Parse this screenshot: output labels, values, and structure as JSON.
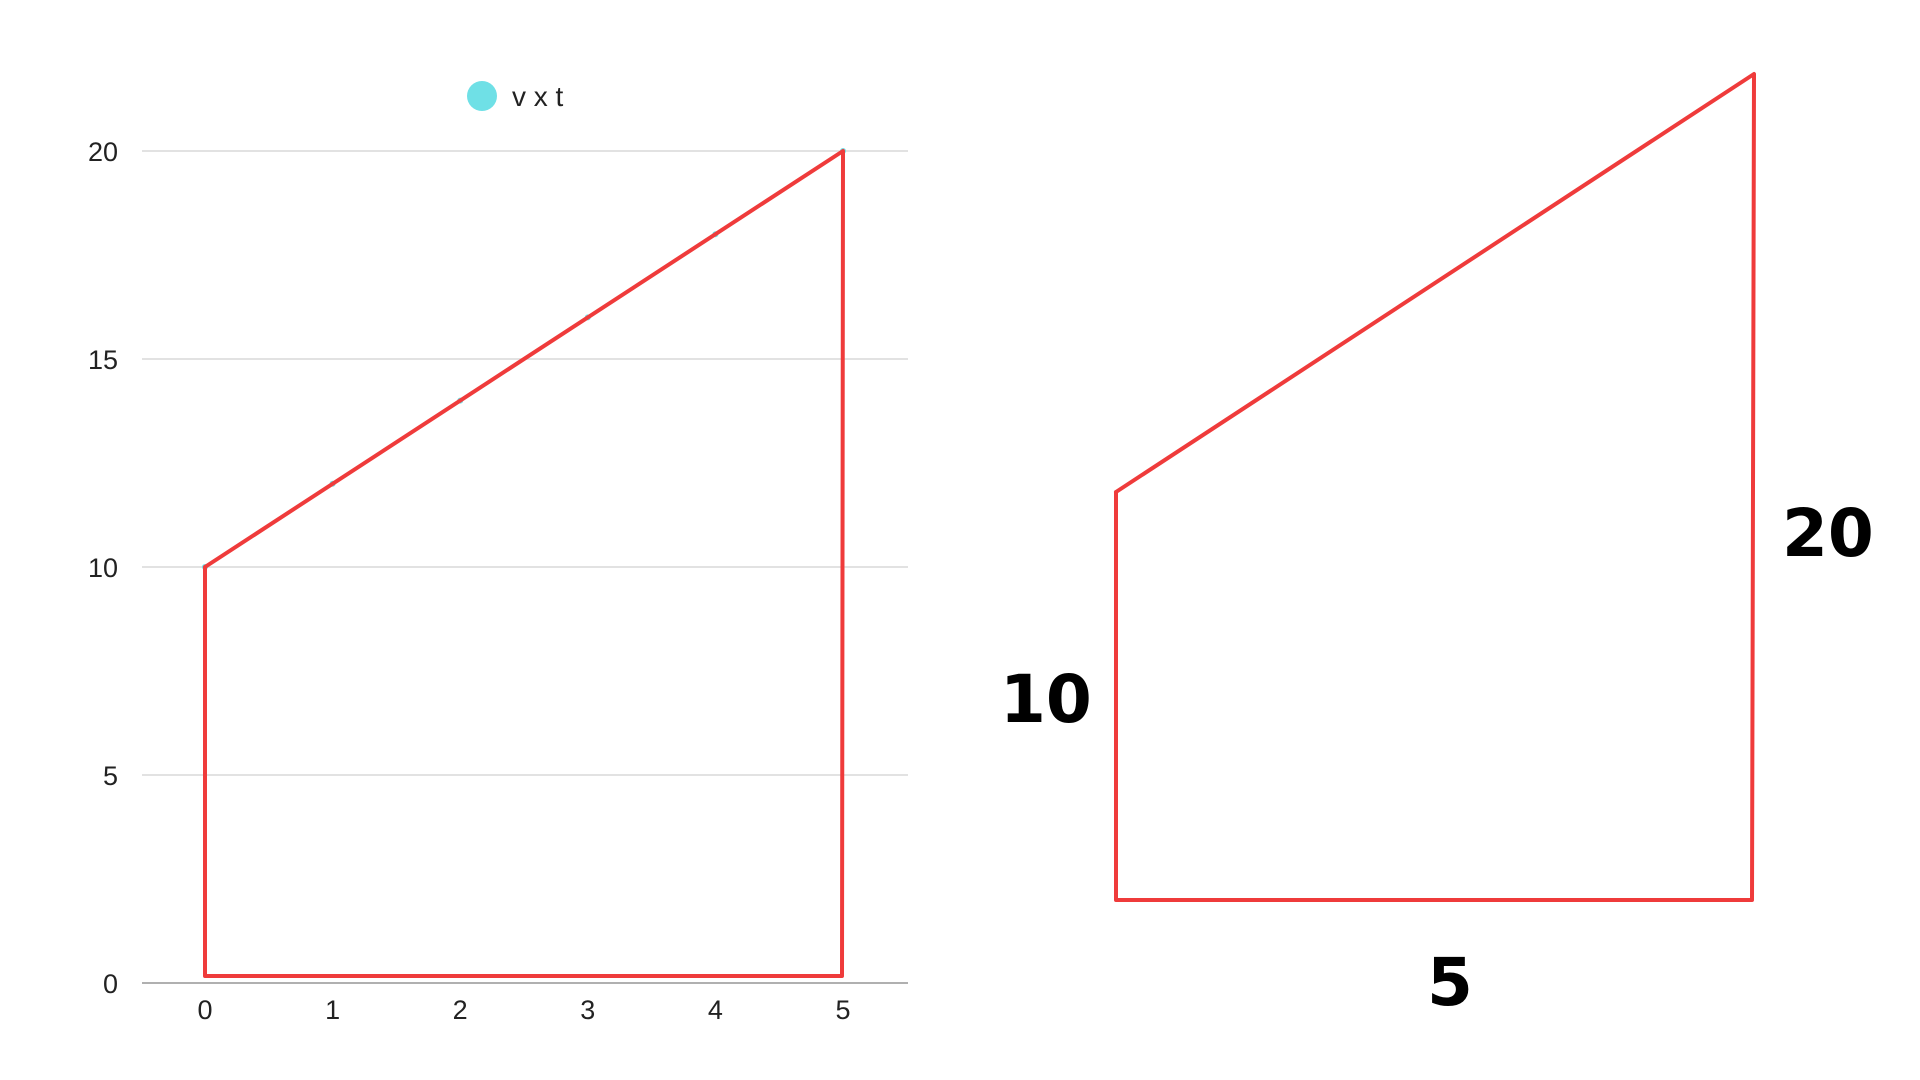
{
  "chart_data": {
    "type": "line",
    "title": "",
    "xlabel": "",
    "ylabel": "",
    "x": [
      0,
      1,
      2,
      3,
      4,
      5
    ],
    "series": [
      {
        "name": "v x t",
        "values": [
          10,
          12,
          14,
          16,
          18,
          20
        ]
      }
    ],
    "xlim": [
      0,
      5
    ],
    "ylim": [
      0,
      20
    ],
    "x_ticks": [
      "0",
      "1",
      "2",
      "3",
      "4",
      "5"
    ],
    "y_ticks": [
      "0",
      "5",
      "10",
      "15",
      "20"
    ],
    "grid": true,
    "legend_position": "top",
    "series_color": "#6fe0e6",
    "overlay_color": "#ef3b3b",
    "overlay_shape": "trapezoid enclosing area under the line from t=0 to t=5"
  },
  "diagram": {
    "shape": "trapezoid",
    "left_side_label": "10",
    "right_side_label": "20",
    "base_label": "5",
    "line_color": "#ef3b3b"
  }
}
